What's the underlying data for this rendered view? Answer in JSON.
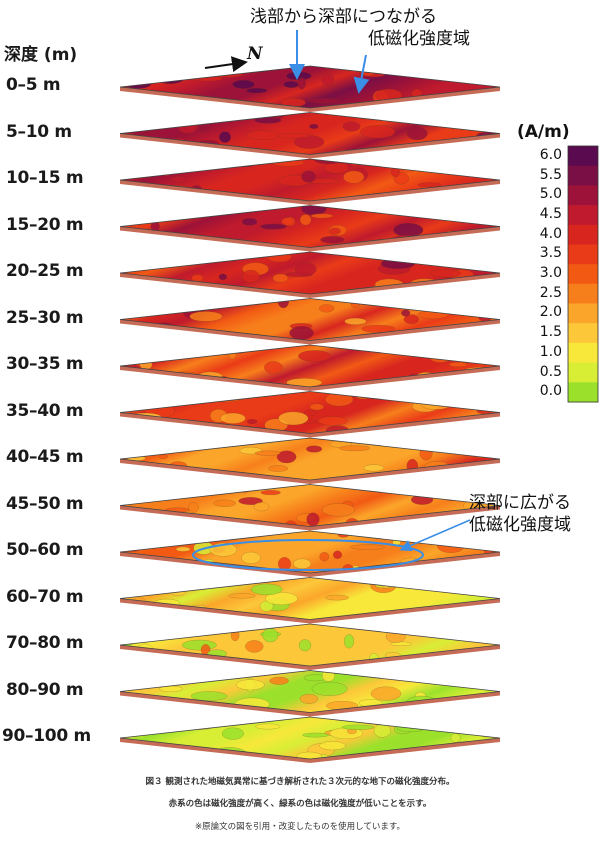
{
  "depth_header": "深度 (m)",
  "north_label": "N",
  "annotation_top": [
    "浅部から深部につながる",
    "低磁化強度域"
  ],
  "annotation_mid": [
    "深部に広がる",
    "低磁化強度域"
  ],
  "colorbar": {
    "unit": "(A/m)",
    "ticks": [
      "6.0",
      "5.5",
      "5.0",
      "4.5",
      "4.0",
      "3.5",
      "3.0",
      "2.5",
      "2.0",
      "1.5",
      "1.0",
      "0.5",
      "0.0"
    ],
    "colors": [
      "#5a0a4e",
      "#7a0f45",
      "#9c1238",
      "#bf1a2d",
      "#d8261f",
      "#ea3b18",
      "#f25a14",
      "#f77f1b",
      "#fba62a",
      "#fcc83a",
      "#f8e83a",
      "#d8ee35",
      "#9be12c"
    ]
  },
  "layers": [
    {
      "depth": "0–5 m",
      "level": 0.82
    },
    {
      "depth": "5–10 m",
      "level": 0.72
    },
    {
      "depth": "10–15 m",
      "level": 0.68
    },
    {
      "depth": "15–20 m",
      "level": 0.66
    },
    {
      "depth": "20–25 m",
      "level": 0.62
    },
    {
      "depth": "25–30 m",
      "level": 0.58
    },
    {
      "depth": "30–35 m",
      "level": 0.55
    },
    {
      "depth": "35–40 m",
      "level": 0.52
    },
    {
      "depth": "40–45 m",
      "level": 0.48
    },
    {
      "depth": "45–50 m",
      "level": 0.44
    },
    {
      "depth": "50–60 m",
      "level": 0.34
    },
    {
      "depth": "60–70 m",
      "level": 0.22
    },
    {
      "depth": "70–80 m",
      "level": 0.16
    },
    {
      "depth": "80–90 m",
      "level": 0.12
    },
    {
      "depth": "90–100 m",
      "level": 0.08
    }
  ],
  "caption": [
    "図３ 観測された地磁気異常に基づき解析された３次元的な地下の磁化強度分布。",
    "赤系の色は磁化強度が高く、緑系の色は磁化強度が低いことを示す。",
    "※原論文の図を引用・改変したものを使用しています。"
  ]
}
